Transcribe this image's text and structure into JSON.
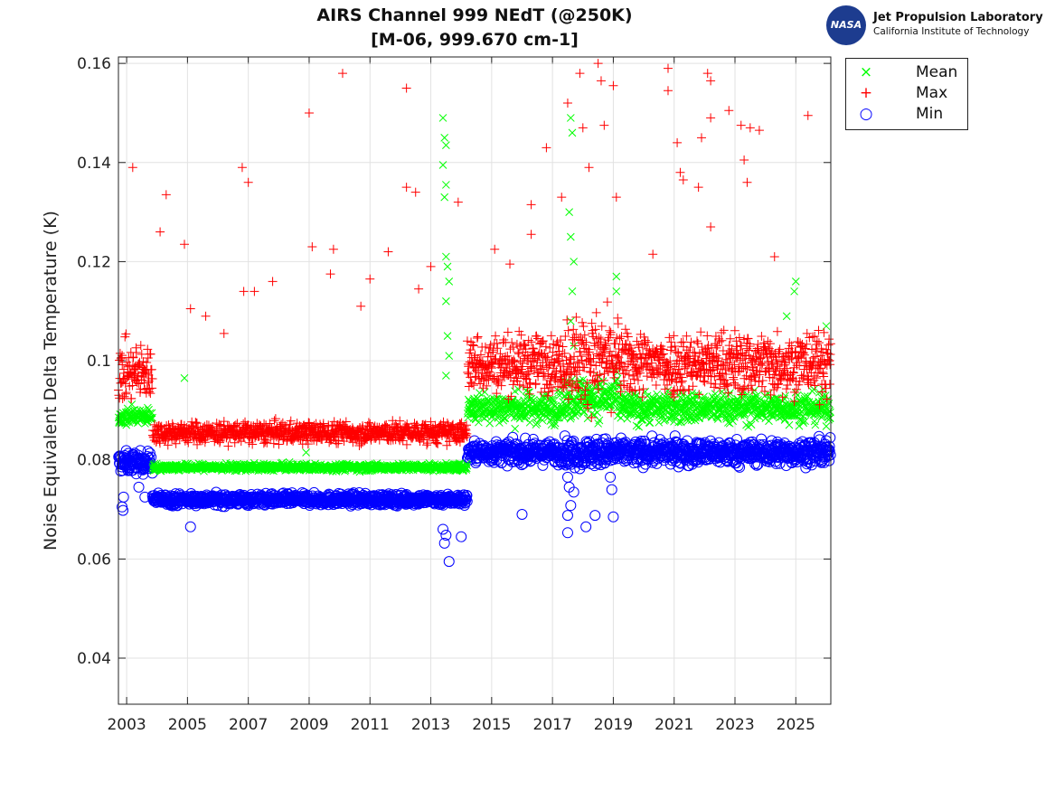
{
  "header": {
    "logo_text": "NASA",
    "org_name": "Jet Propulsion Laboratory",
    "org_sub": "California Institute of Technology"
  },
  "chart_data": {
    "type": "scatter",
    "title": [
      "AIRS Channel 999 NEdT (@250K)",
      "[M-06, 999.670 cm-1]"
    ],
    "xlabel": "",
    "ylabel": "Noise Equivalent Delta Temperature (K)",
    "xlim": [
      2002.73,
      2026.15
    ],
    "ylim": [
      0.0307,
      0.1613
    ],
    "xticks": [
      2003,
      2005,
      2007,
      2009,
      2011,
      2013,
      2015,
      2017,
      2019,
      2021,
      2023,
      2025
    ],
    "xtick_labels": [
      "2003",
      "2005",
      "2007",
      "2009",
      "2011",
      "2013",
      "2015",
      "2017",
      "2019",
      "2021",
      "2023",
      "2025"
    ],
    "yticks": [
      0.04,
      0.06,
      0.08,
      0.1,
      0.12,
      0.14,
      0.16
    ],
    "ytick_labels": [
      "0.04",
      "0.06",
      "0.08",
      "0.1",
      "0.12",
      "0.14",
      "0.16"
    ],
    "grid": true,
    "legend_position": "outside-top-right",
    "series": [
      {
        "name": "Mean",
        "marker": "x",
        "color": "#00ff00",
        "segments": [
          {
            "x": [
              2002.73,
              2003.85
            ],
            "level": 0.0888,
            "spread": 0.0012
          },
          {
            "x": [
              2003.85,
              2014.2
            ],
            "level": 0.0785,
            "spread": 0.0005
          },
          {
            "x": [
              2014.2,
              2017.4
            ],
            "level": 0.0905,
            "spread": 0.0022
          },
          {
            "x": [
              2017.4,
              2019.2
            ],
            "level": 0.0925,
            "spread": 0.003
          },
          {
            "x": [
              2019.2,
              2026.2
            ],
            "level": 0.0905,
            "spread": 0.0022
          }
        ],
        "outliers": [
          [
            2004.9,
            0.0965
          ],
          [
            2008.9,
            0.0815
          ],
          [
            2013.4,
            0.149
          ],
          [
            2013.45,
            0.145
          ],
          [
            2013.5,
            0.1435
          ],
          [
            2013.4,
            0.1395
          ],
          [
            2013.5,
            0.1355
          ],
          [
            2013.45,
            0.133
          ],
          [
            2013.5,
            0.121
          ],
          [
            2013.55,
            0.119
          ],
          [
            2013.6,
            0.116
          ],
          [
            2013.5,
            0.112
          ],
          [
            2013.55,
            0.105
          ],
          [
            2013.6,
            0.101
          ],
          [
            2013.5,
            0.097
          ],
          [
            2017.6,
            0.149
          ],
          [
            2017.65,
            0.146
          ],
          [
            2017.55,
            0.13
          ],
          [
            2017.6,
            0.125
          ],
          [
            2017.7,
            0.12
          ],
          [
            2017.65,
            0.114
          ],
          [
            2017.6,
            0.108
          ],
          [
            2017.7,
            0.103
          ],
          [
            2019.1,
            0.117
          ],
          [
            2019.1,
            0.114
          ],
          [
            2024.7,
            0.109
          ],
          [
            2025.0,
            0.116
          ],
          [
            2024.95,
            0.114
          ],
          [
            2026.0,
            0.107
          ]
        ]
      },
      {
        "name": "Max",
        "marker": "+",
        "color": "#ff0000",
        "segments": [
          {
            "x": [
              2002.73,
              2003.85
            ],
            "level": 0.0975,
            "spread": 0.004
          },
          {
            "x": [
              2003.85,
              2014.2
            ],
            "level": 0.0855,
            "spread": 0.0015
          },
          {
            "x": [
              2014.2,
              2017.4
            ],
            "level": 0.0995,
            "spread": 0.004
          },
          {
            "x": [
              2017.4,
              2019.2
            ],
            "level": 0.1005,
            "spread": 0.006
          },
          {
            "x": [
              2019.2,
              2026.2
            ],
            "level": 0.0995,
            "spread": 0.0045
          }
        ],
        "outliers": [
          [
            2003.2,
            0.139
          ],
          [
            2004.1,
            0.126
          ],
          [
            2004.3,
            0.1335
          ],
          [
            2004.9,
            0.1235
          ],
          [
            2005.1,
            0.1105
          ],
          [
            2005.6,
            0.109
          ],
          [
            2006.2,
            0.1055
          ],
          [
            2006.8,
            0.139
          ],
          [
            2006.85,
            0.114
          ],
          [
            2007.0,
            0.136
          ],
          [
            2007.2,
            0.114
          ],
          [
            2007.8,
            0.116
          ],
          [
            2009.0,
            0.15
          ],
          [
            2009.1,
            0.123
          ],
          [
            2009.7,
            0.1175
          ],
          [
            2009.8,
            0.1225
          ],
          [
            2010.1,
            0.158
          ],
          [
            2010.7,
            0.111
          ],
          [
            2011.0,
            0.1165
          ],
          [
            2011.6,
            0.122
          ],
          [
            2012.2,
            0.155
          ],
          [
            2012.2,
            0.135
          ],
          [
            2012.5,
            0.134
          ],
          [
            2012.6,
            0.1145
          ],
          [
            2013.0,
            0.119
          ],
          [
            2013.9,
            0.132
          ],
          [
            2015.1,
            0.1225
          ],
          [
            2015.6,
            0.1195
          ],
          [
            2016.3,
            0.1255
          ],
          [
            2016.3,
            0.1315
          ],
          [
            2016.8,
            0.143
          ],
          [
            2017.3,
            0.133
          ],
          [
            2017.5,
            0.152
          ],
          [
            2017.9,
            0.158
          ],
          [
            2018.0,
            0.147
          ],
          [
            2018.2,
            0.139
          ],
          [
            2018.5,
            0.16
          ],
          [
            2018.6,
            0.1565
          ],
          [
            2018.7,
            0.1475
          ],
          [
            2019.0,
            0.1555
          ],
          [
            2019.1,
            0.133
          ],
          [
            2020.3,
            0.1215
          ],
          [
            2020.8,
            0.159
          ],
          [
            2020.8,
            0.1545
          ],
          [
            2021.1,
            0.144
          ],
          [
            2021.2,
            0.138
          ],
          [
            2021.3,
            0.1365
          ],
          [
            2021.8,
            0.135
          ],
          [
            2021.9,
            0.145
          ],
          [
            2022.1,
            0.158
          ],
          [
            2022.2,
            0.1565
          ],
          [
            2022.2,
            0.149
          ],
          [
            2022.2,
            0.127
          ],
          [
            2022.8,
            0.1505
          ],
          [
            2023.2,
            0.1475
          ],
          [
            2023.3,
            0.1405
          ],
          [
            2023.4,
            0.136
          ],
          [
            2023.5,
            0.147
          ],
          [
            2023.8,
            0.1465
          ],
          [
            2024.3,
            0.121
          ],
          [
            2025.4,
            0.1495
          ]
        ]
      },
      {
        "name": "Min",
        "marker": "o",
        "color": "#0000ff",
        "segments": [
          {
            "x": [
              2002.73,
              2003.85
            ],
            "level": 0.0795,
            "spread": 0.0015
          },
          {
            "x": [
              2003.85,
              2014.2
            ],
            "level": 0.072,
            "spread": 0.0008
          },
          {
            "x": [
              2014.2,
              2017.4
            ],
            "level": 0.0815,
            "spread": 0.0015
          },
          {
            "x": [
              2017.4,
              2019.2
            ],
            "level": 0.0815,
            "spread": 0.002
          },
          {
            "x": [
              2019.2,
              2026.2
            ],
            "level": 0.0815,
            "spread": 0.0017
          }
        ],
        "outliers": [
          [
            2002.85,
            0.0705
          ],
          [
            2002.9,
            0.0725
          ],
          [
            2002.88,
            0.0698
          ],
          [
            2003.4,
            0.0745
          ],
          [
            2003.6,
            0.0725
          ],
          [
            2005.1,
            0.0665
          ],
          [
            2013.4,
            0.066
          ],
          [
            2013.45,
            0.0632
          ],
          [
            2013.5,
            0.0648
          ],
          [
            2013.6,
            0.0595
          ],
          [
            2014.0,
            0.0645
          ],
          [
            2016.0,
            0.069
          ],
          [
            2017.5,
            0.0765
          ],
          [
            2017.55,
            0.0745
          ],
          [
            2017.6,
            0.0708
          ],
          [
            2017.5,
            0.0688
          ],
          [
            2017.5,
            0.0653
          ],
          [
            2017.7,
            0.0735
          ],
          [
            2018.1,
            0.0665
          ],
          [
            2018.4,
            0.0688
          ],
          [
            2019.0,
            0.0685
          ],
          [
            2018.95,
            0.074
          ],
          [
            2018.9,
            0.0765
          ]
        ]
      }
    ]
  }
}
